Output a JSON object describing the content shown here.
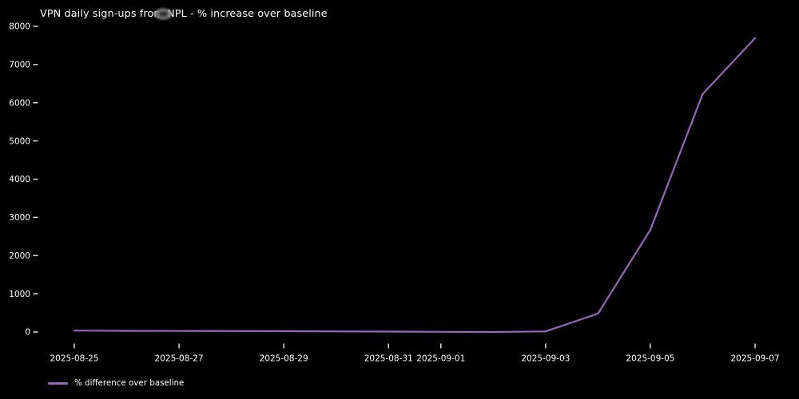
{
  "header": {
    "title": "VPN daily sign-ups from NPL - % increase over baseline"
  },
  "legend": {
    "label": "% difference over baseline"
  },
  "colors": {
    "background": "#000000",
    "line": "#9467bd",
    "text": "#ffffff",
    "tick": "#ffffff"
  },
  "chart_data": {
    "type": "line",
    "title": "VPN daily sign-ups from NPL - % increase over baseline",
    "x": [
      "2025-08-25",
      "2025-08-26",
      "2025-08-27",
      "2025-08-28",
      "2025-08-29",
      "2025-08-30",
      "2025-08-31",
      "2025-09-01",
      "2025-09-02",
      "2025-09-03",
      "2025-09-04",
      "2025-09-05",
      "2025-09-06",
      "2025-09-07"
    ],
    "series": [
      {
        "name": "% difference over baseline",
        "color": "#9467bd",
        "values": [
          35,
          30,
          28,
          25,
          20,
          15,
          10,
          5,
          0,
          15,
          480,
          2670,
          6230,
          7690
        ]
      }
    ],
    "xlabel": "",
    "ylabel": "",
    "ylim": [
      -300,
      8150
    ],
    "yticks": [
      0,
      1000,
      2000,
      3000,
      4000,
      5000,
      6000,
      7000,
      8000
    ],
    "xticks": [
      {
        "label": "2025-08-25",
        "day": 0
      },
      {
        "label": "2025-08-27",
        "day": 2
      },
      {
        "label": "2025-08-29",
        "day": 4
      },
      {
        "label": "2025-08-31",
        "day": 6
      },
      {
        "label": "2025-09-01",
        "day": 7
      },
      {
        "label": "2025-09-03",
        "day": 9
      },
      {
        "label": "2025-09-05",
        "day": 11
      },
      {
        "label": "2025-09-07",
        "day": 13
      }
    ],
    "grid": false,
    "legend_position": "lower left"
  }
}
